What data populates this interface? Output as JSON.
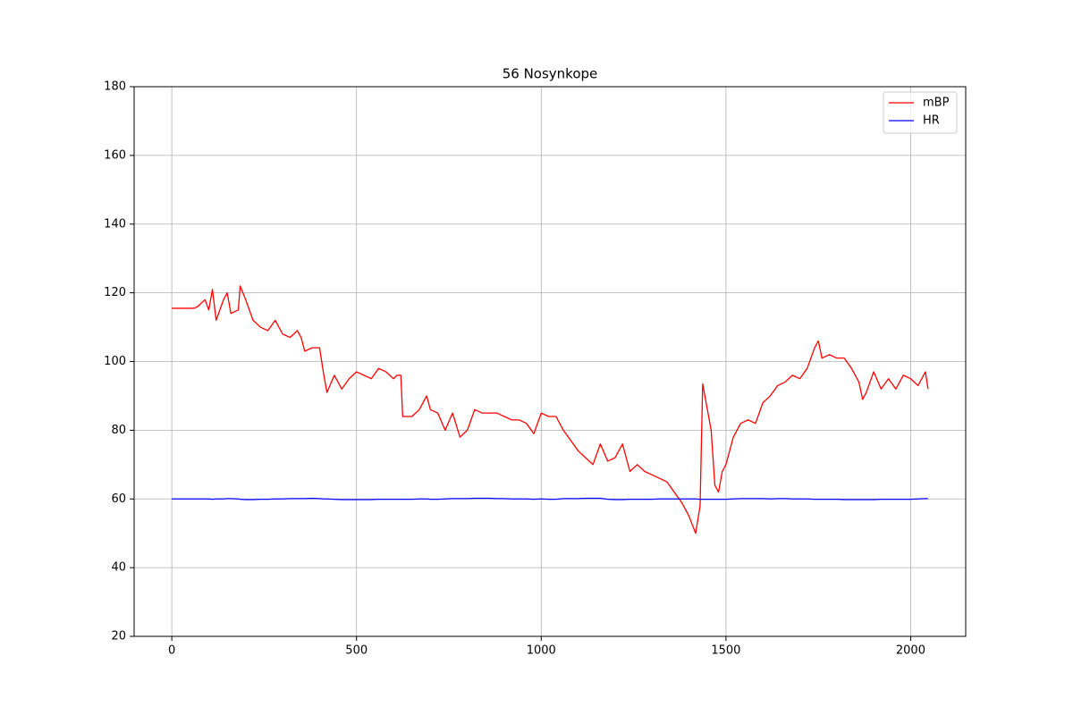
{
  "chart_data": {
    "type": "line",
    "title": "56 Nosynkope",
    "x": [
      0,
      60,
      70,
      90,
      100,
      110,
      120,
      140,
      150,
      160,
      180,
      185,
      200,
      220,
      240,
      260,
      280,
      300,
      320,
      340,
      350,
      360,
      380,
      400,
      410,
      420,
      440,
      460,
      480,
      500,
      520,
      540,
      560,
      580,
      600,
      610,
      620,
      625,
      650,
      670,
      690,
      700,
      720,
      740,
      760,
      780,
      800,
      820,
      840,
      860,
      880,
      900,
      920,
      940,
      960,
      980,
      1000,
      1020,
      1040,
      1060,
      1080,
      1100,
      1120,
      1140,
      1160,
      1180,
      1200,
      1220,
      1240,
      1260,
      1280,
      1300,
      1320,
      1340,
      1360,
      1380,
      1400,
      1418,
      1430,
      1437,
      1460,
      1470,
      1480,
      1490,
      1500,
      1520,
      1540,
      1560,
      1580,
      1600,
      1620,
      1640,
      1660,
      1680,
      1700,
      1720,
      1740,
      1750,
      1760,
      1780,
      1800,
      1820,
      1840,
      1860,
      1870,
      1880,
      1900,
      1920,
      1940,
      1960,
      1980,
      2000,
      2020,
      2040,
      2047
    ],
    "series": [
      {
        "name": "mBP",
        "color": "#ff0000",
        "values": [
          115.5,
          115.5,
          116,
          118,
          115,
          121,
          112,
          118,
          120,
          114,
          115,
          122,
          118,
          112,
          110,
          109,
          112,
          108,
          107,
          109,
          107,
          103,
          104,
          104,
          97,
          91,
          96,
          92,
          95,
          97,
          96,
          95,
          98,
          97,
          95,
          96,
          96,
          84,
          84,
          86,
          90,
          86,
          85,
          80,
          85,
          78,
          80,
          86,
          85,
          85,
          85,
          84,
          83,
          83,
          82,
          79,
          85,
          84,
          84,
          80,
          77,
          74,
          72,
          70,
          76,
          71,
          72,
          76,
          68,
          70,
          68,
          67,
          66,
          65,
          62,
          59,
          55,
          50,
          58,
          93.5,
          80,
          64,
          62,
          68,
          70,
          78,
          82,
          83,
          82,
          88,
          90,
          93,
          94,
          96,
          95,
          98,
          104,
          106,
          101,
          102,
          101,
          101,
          98,
          94,
          89,
          91,
          97,
          92,
          95,
          92,
          96,
          95,
          93,
          97,
          92
        ]
      },
      {
        "name": "HR",
        "color": "#0000ff",
        "values": [
          60,
          60,
          60,
          60,
          60,
          59.9,
          60,
          60,
          60.1,
          60.1,
          60,
          59.9,
          59.8,
          59.8,
          59.9,
          59.9,
          60,
          60,
          60.1,
          60.1,
          60.1,
          60.1,
          60.2,
          60.1,
          60,
          60,
          59.9,
          59.8,
          59.8,
          59.8,
          59.8,
          59.8,
          59.9,
          59.9,
          59.9,
          59.9,
          59.9,
          59.9,
          59.9,
          60,
          60,
          59.9,
          59.9,
          60,
          60.1,
          60.1,
          60.1,
          60.2,
          60.2,
          60.2,
          60.1,
          60.1,
          60,
          60,
          60,
          59.9,
          60,
          59.9,
          59.9,
          60.1,
          60.1,
          60.1,
          60.2,
          60.2,
          60.2,
          59.9,
          59.8,
          59.8,
          59.9,
          59.9,
          59.9,
          59.9,
          60,
          60,
          60,
          60,
          60,
          60,
          59.9,
          59.9,
          59.9,
          59.9,
          59.9,
          59.9,
          59.9,
          60,
          60.1,
          60.1,
          60.1,
          60.1,
          60,
          60.1,
          60.1,
          60,
          60,
          60,
          59.9,
          59.9,
          59.9,
          59.9,
          59.9,
          59.8,
          59.8,
          59.8,
          59.8,
          59.8,
          59.8,
          59.9,
          59.9,
          59.9,
          59.9,
          59.9,
          60,
          60.1,
          60.1
        ]
      }
    ],
    "xlim": [
      -102,
      2149
    ],
    "ylim": [
      20,
      180
    ],
    "xticks": [
      0,
      500,
      1000,
      1500,
      2000
    ],
    "yticks": [
      20,
      40,
      60,
      80,
      100,
      120,
      140,
      160,
      180
    ],
    "grid": true,
    "legend": "upper right"
  }
}
